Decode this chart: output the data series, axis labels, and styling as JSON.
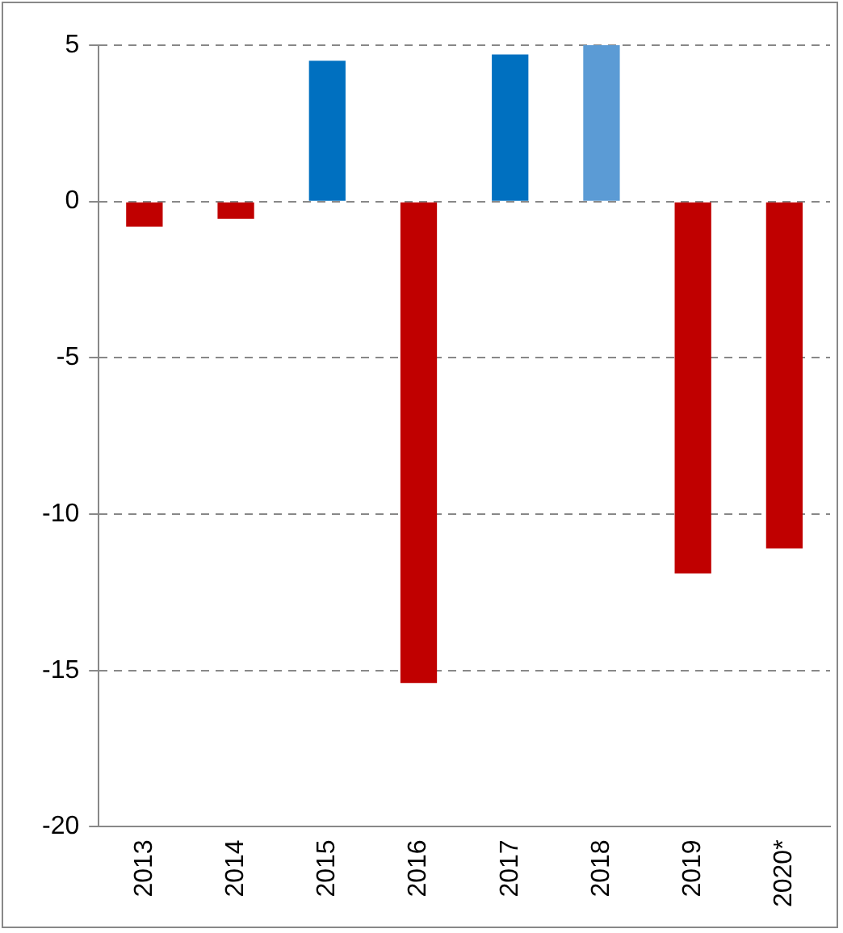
{
  "chart_data": {
    "type": "bar",
    "categories": [
      "2013",
      "2014",
      "2015",
      "2016",
      "2017",
      "2018",
      "2019",
      "2020*"
    ],
    "values": [
      -0.8,
      -0.55,
      4.5,
      -15.4,
      4.7,
      5.0,
      -11.9,
      -11.1
    ],
    "colors": [
      "#c00000",
      "#c00000",
      "#0070c0",
      "#c00000",
      "#0070c0",
      "#5b9bd5",
      "#c00000",
      "#c00000"
    ],
    "ylim": [
      -20,
      5
    ],
    "yticks": [
      -20,
      -15,
      -10,
      -5,
      0,
      5
    ],
    "grid": "y",
    "legend": false
  }
}
